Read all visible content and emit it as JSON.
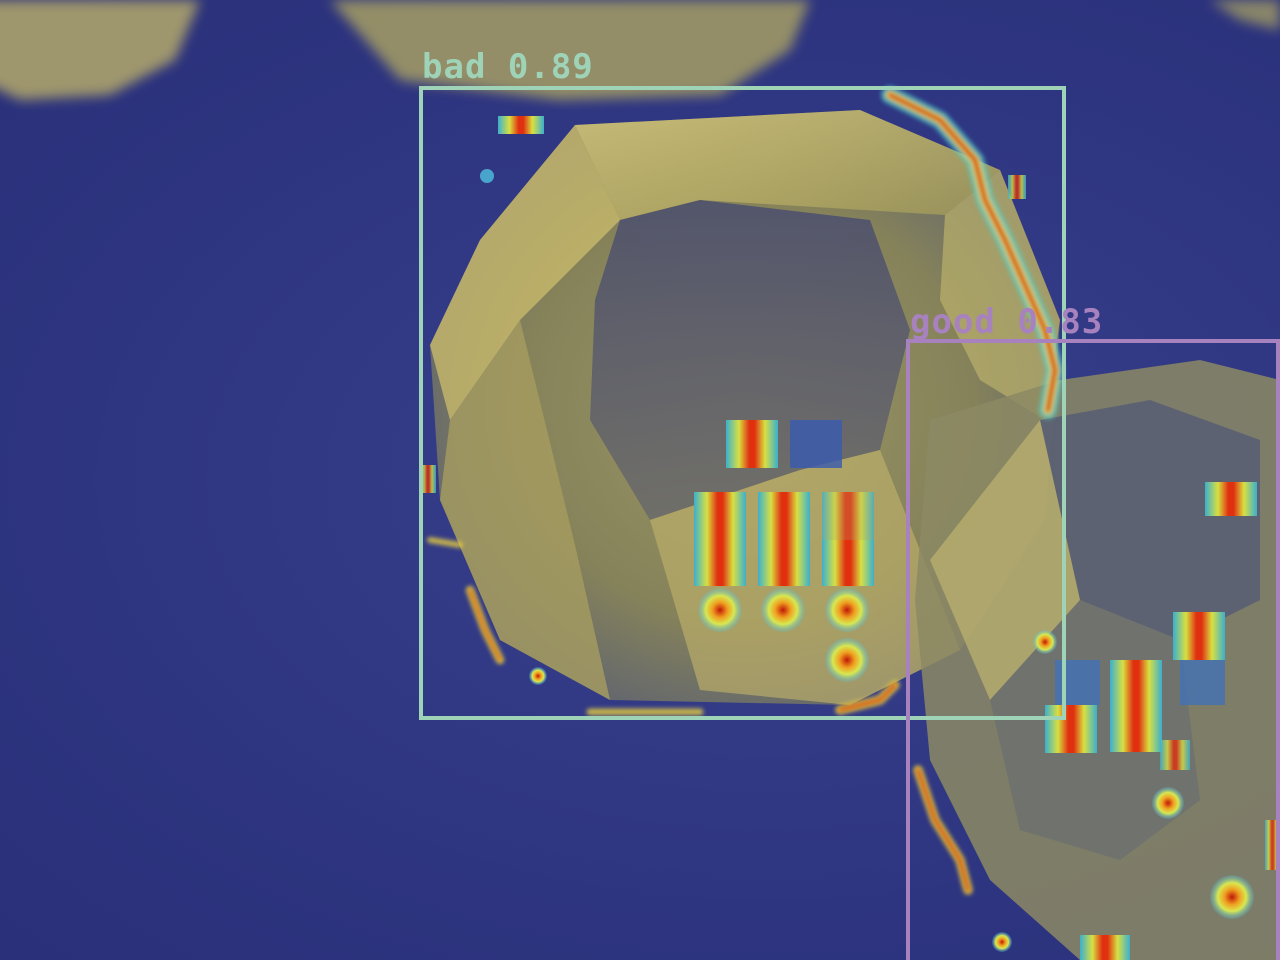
{
  "colors": {
    "background": "#2e3584",
    "bad_box": "#9fd3b8",
    "good_box": "#a782bf",
    "crystal": "#c9b866"
  },
  "detections": [
    {
      "label": "bad",
      "score": "0.89",
      "text": "bad 0.89",
      "color": "#9fd3b8"
    },
    {
      "label": "good",
      "score": "0.83",
      "text": "good 0.83",
      "color": "#a782bf"
    }
  ]
}
